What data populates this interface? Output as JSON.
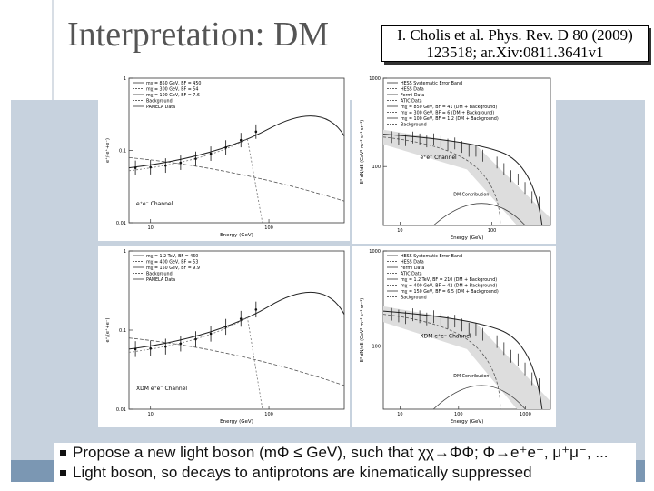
{
  "title": "Interpretation: DM",
  "citation": [
    "I. Cholis et al. Phys. Rev. D 80 (2009)",
    "123518; ar.Xiv:0811.3641v1"
  ],
  "panels": [
    {
      "legend": [
        "mχ = 850 GeV, BF = 450",
        "mχ = 300 GeV, BF = 54",
        "mχ = 100 GeV, BF = 7.6",
        "Background",
        "PAMELA Data"
      ],
      "ylabel": "e⁺/(e⁺+e⁻)",
      "xlabel": "Energy (GeV)",
      "channel": "e⁺e⁻ Channel",
      "yticks": [
        "1",
        "0.1",
        "0.01"
      ],
      "xticks": [
        "10",
        "100"
      ]
    },
    {
      "legend": [
        "HESS Systematic Error Band",
        "HESS Data",
        "Fermi Data",
        "ATIC Data",
        "mχ = 850 GeV, BF = 41 (DM + Background)",
        "mχ = 300 GeV, BF = 6 (DM + Background)",
        "mχ = 100 GeV, BF = 1.2 (DM + Background)",
        "Background"
      ],
      "ylabel": "E³ dN/dE (GeV² m⁻² s⁻¹ sr⁻¹)",
      "xlabel": "Energy (GeV)",
      "channel": "e⁺e⁻ Channel",
      "annotation": "DM Contribution",
      "yticks": [
        "1000",
        "100"
      ],
      "xticks": [
        "10",
        "100"
      ]
    },
    {
      "legend": [
        "mχ = 1.2 TeV, BF = 460",
        "mχ = 400 GeV, BF = 53",
        "mχ = 150 GeV, BF = 9.9",
        "Background",
        "PAMELA Data"
      ],
      "ylabel": "e⁺/(e⁺+e⁻)",
      "xlabel": "Energy (GeV)",
      "channel": "XDM e⁺e⁻ Channel",
      "yticks": [
        "1",
        "0.1",
        "0.01"
      ],
      "xticks": [
        "10",
        "100"
      ]
    },
    {
      "legend": [
        "HESS Systematic Error Band",
        "HESS Data",
        "Fermi Data",
        "ATIC Data",
        "mχ = 1.2 TeV, BF = 210 (DM + Background)",
        "mχ = 400 GeV, BF = 42 (DM + Background)",
        "mχ = 150 GeV, BF = 6.5 (DM + Background)",
        "Background"
      ],
      "ylabel": "E³ dN/dE (GeV² m⁻² s⁻¹ sr⁻¹)",
      "xlabel": "Energy (GeV)",
      "channel": "XDM e⁺e⁻ Channel",
      "annotation": "DM Contribution",
      "yticks": [
        "1000",
        "100"
      ],
      "xticks": [
        "10",
        "100",
        "1000"
      ]
    }
  ],
  "bullets": [
    "Propose a new light boson (mΦ ≤ GeV), such that χχ→ΦΦ; Φ→e⁺e⁻, μ⁺μ⁻, ...",
    "Light boson, so decays to antiprotons are kinematically suppressed"
  ]
}
